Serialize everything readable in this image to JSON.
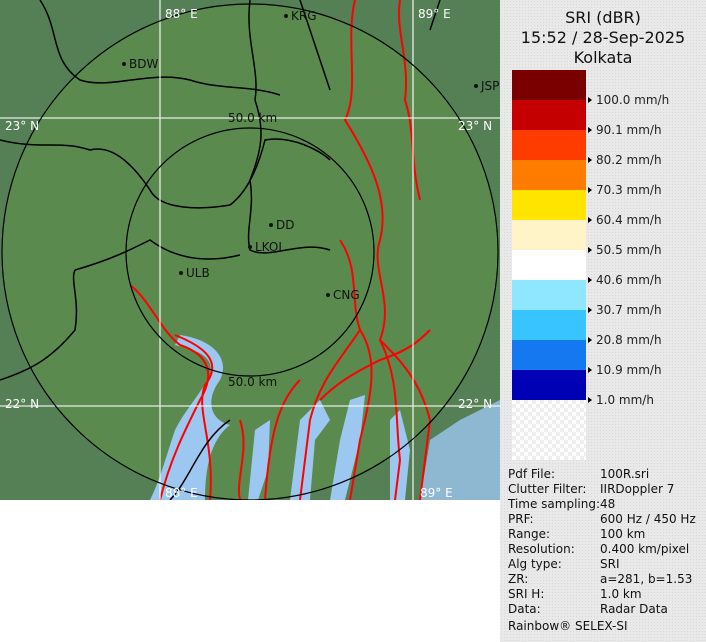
{
  "map": {
    "grid_labels": {
      "lon_top_left": "88° E",
      "lon_top_right": "89° E",
      "lon_bottom_left": "88° E",
      "lon_bottom_right": "89° E",
      "lat_upper_left": "23° N",
      "lat_upper_right": "23° N",
      "lat_lower_left": "22° N",
      "lat_lower_right": "22° N"
    },
    "range_rings": [
      "50.0 km",
      "50.0 km"
    ],
    "cities": [
      {
        "code": "KRG"
      },
      {
        "code": "BDW"
      },
      {
        "code": "JSP"
      },
      {
        "code": "DD"
      },
      {
        "code": "LKOL"
      },
      {
        "code": "ULB"
      },
      {
        "code": "CNG"
      }
    ],
    "colors": {
      "land": "#5b8a4f",
      "outside": "#557f55",
      "water": "#9cc7f0",
      "rivers": "#ff0000",
      "borders": "#000000",
      "grid": "#ffffff"
    }
  },
  "legend": {
    "product": "SRI (dBR)",
    "datetime": "15:52 / 28-Sep-2025",
    "site": "Kolkata",
    "colors": [
      "#7a0000",
      "#c40000",
      "#ff3c00",
      "#ff7c00",
      "#ffe400",
      "#fff4c8",
      "#ffffff",
      "#8ee6ff",
      "#38c4ff",
      "#1478f0",
      "#0000b4"
    ],
    "labels": [
      "100.0 mm/h",
      "90.1 mm/h",
      "80.2 mm/h",
      "70.3 mm/h",
      "60.4 mm/h",
      "50.5 mm/h",
      "40.6 mm/h",
      "30.7 mm/h",
      "20.8 mm/h",
      "10.9 mm/h",
      "1.0 mm/h"
    ]
  },
  "info": [
    {
      "k": "Pdf File:",
      "v": "100R.sri"
    },
    {
      "k": "Clutter Filter:",
      "v": "IIRDoppler 7"
    },
    {
      "k": "Time sampling:",
      "v": "48"
    },
    {
      "k": "PRF:",
      "v": "600 Hz / 450 Hz"
    },
    {
      "k": "Range:",
      "v": "100 km"
    },
    {
      "k": "Resolution:",
      "v": "0.400 km/pixel"
    },
    {
      "k": "Alg type:",
      "v": "SRI"
    },
    {
      "k": "ZR:",
      "v": "a=281, b=1.53"
    },
    {
      "k": "SRI H:",
      "v": "1.0 km"
    },
    {
      "k": "Data:",
      "v": "Radar Data"
    }
  ],
  "footer": "Rainbow® SELEX-SI"
}
